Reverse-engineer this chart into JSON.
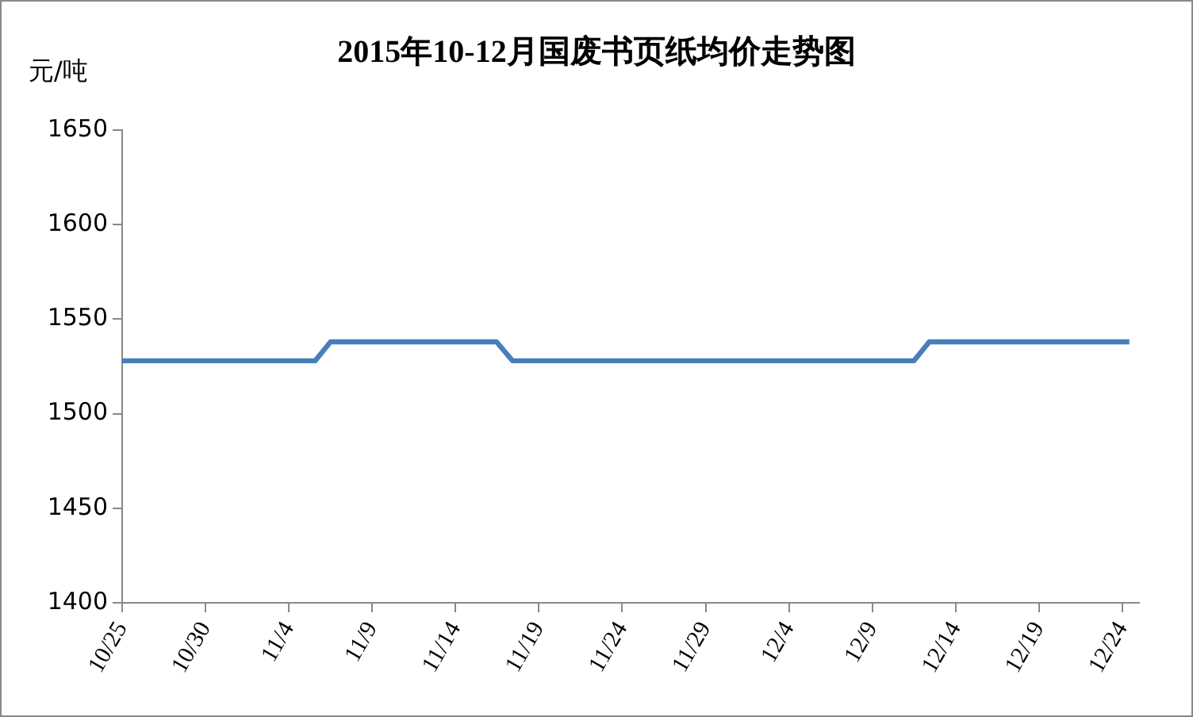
{
  "chart_data": {
    "type": "line",
    "title": "2015年10-12月国废书页纸均价走势图",
    "ylabel": "元/吨",
    "x": [
      "2015-10-25",
      "2015-11-05T14:00",
      "2015-11-06T12:00",
      "2015-11-16T11:00",
      "2015-11-17T10:00",
      "2015-12-11T12:00",
      "2015-12-12T10:00",
      "2015-12-24T10:00"
    ],
    "series": [
      {
        "color": "#4a7ebb",
        "values": [
          1528,
          1528,
          1538,
          1538,
          1528,
          1528,
          1538,
          1538
        ]
      }
    ],
    "xlim": [
      "2015-10-25",
      "2015-12-25"
    ],
    "xticks": [
      {
        "value": "2015-10-25",
        "label": "10/25"
      },
      {
        "value": "2015-10-30",
        "label": "10/30"
      },
      {
        "value": "2015-11-04",
        "label": "11/4"
      },
      {
        "value": "2015-11-09",
        "label": "11/9"
      },
      {
        "value": "2015-11-14",
        "label": "11/14"
      },
      {
        "value": "2015-11-19",
        "label": "11/19"
      },
      {
        "value": "2015-11-24",
        "label": "11/24"
      },
      {
        "value": "2015-11-29",
        "label": "11/29"
      },
      {
        "value": "2015-12-04",
        "label": "12/4"
      },
      {
        "value": "2015-12-09",
        "label": "12/9"
      },
      {
        "value": "2015-12-14",
        "label": "12/14"
      },
      {
        "value": "2015-12-19",
        "label": "12/19"
      },
      {
        "value": "2015-12-24",
        "label": "12/24"
      }
    ],
    "ylim": [
      1400,
      1650
    ],
    "yticks": [
      1400,
      1450,
      1500,
      1550,
      1600,
      1650
    ],
    "grid": false,
    "legend": false,
    "marker": "none",
    "line_style": "solid"
  }
}
